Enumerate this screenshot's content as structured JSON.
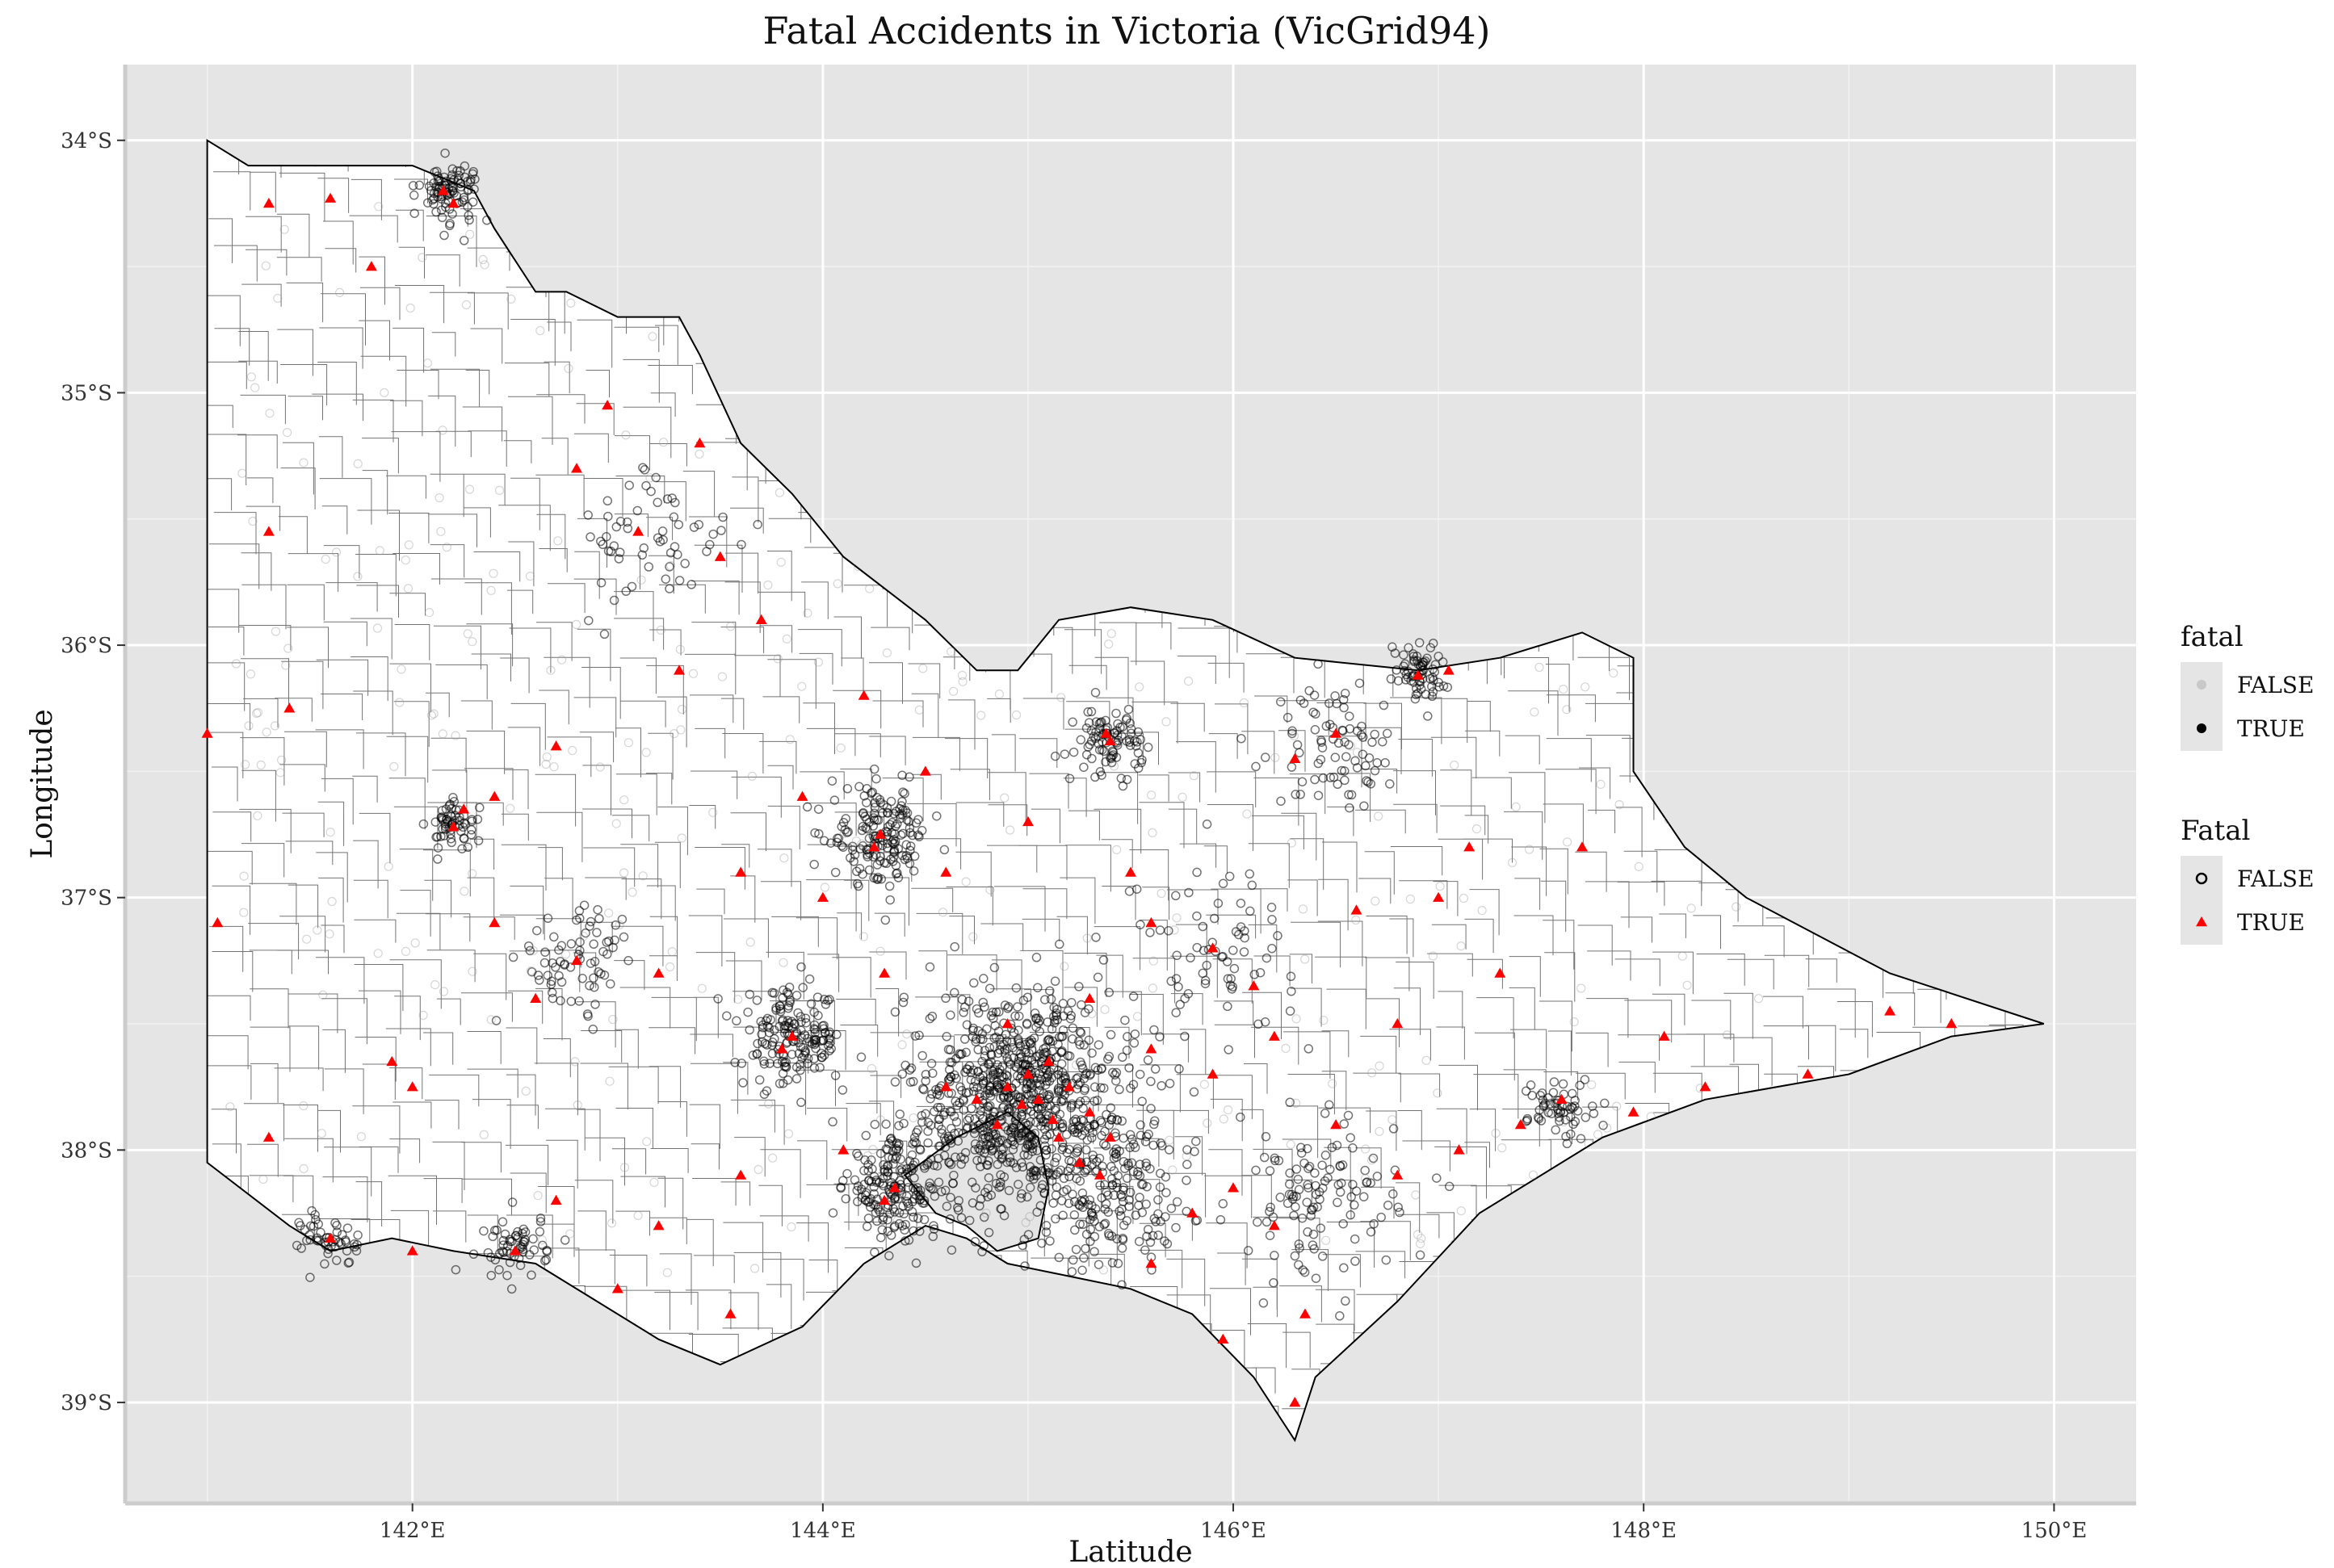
{
  "chart_data": {
    "type": "scatter",
    "title": "Fatal Accidents in Victoria (VicGrid94)",
    "xlabel": "Latitude",
    "ylabel": "Longitude",
    "xlim": [
      140.6,
      150.4
    ],
    "ylim": [
      -39.4,
      -33.7
    ],
    "x_ticks": [
      142,
      144,
      146,
      148,
      150
    ],
    "x_tick_labels": [
      "142°E",
      "144°E",
      "146°E",
      "148°E",
      "150°E"
    ],
    "y_ticks": [
      -34,
      -35,
      -36,
      -37,
      -38,
      -39
    ],
    "y_tick_labels": [
      "34°S",
      "35°S",
      "36°S",
      "37°S",
      "38°S",
      "39°S"
    ],
    "grid": true,
    "legend_placement": "right",
    "legends": [
      {
        "title": "fatal",
        "entries": [
          {
            "label": "FALSE",
            "marker": "circle-filled",
            "color": "#c8c8c8"
          },
          {
            "label": "TRUE",
            "marker": "circle-filled",
            "color": "#000000"
          }
        ]
      },
      {
        "title": "Fatal",
        "entries": [
          {
            "label": "FALSE",
            "marker": "circle-open",
            "color": "#000000"
          },
          {
            "label": "TRUE",
            "marker": "triangle",
            "color": "#ff0000"
          }
        ]
      }
    ],
    "boundary": [
      [
        141.0,
        -34.0
      ],
      [
        141.2,
        -34.1
      ],
      [
        141.6,
        -34.1
      ],
      [
        142.0,
        -34.1
      ],
      [
        142.3,
        -34.2
      ],
      [
        142.4,
        -34.35
      ],
      [
        142.6,
        -34.6
      ],
      [
        142.75,
        -34.6
      ],
      [
        143.0,
        -34.7
      ],
      [
        143.3,
        -34.7
      ],
      [
        143.4,
        -34.85
      ],
      [
        143.6,
        -35.2
      ],
      [
        143.85,
        -35.4
      ],
      [
        144.1,
        -35.65
      ],
      [
        144.5,
        -35.9
      ],
      [
        144.75,
        -36.1
      ],
      [
        144.95,
        -36.1
      ],
      [
        145.15,
        -35.9
      ],
      [
        145.5,
        -35.85
      ],
      [
        145.9,
        -35.9
      ],
      [
        146.3,
        -36.05
      ],
      [
        146.9,
        -36.1
      ],
      [
        147.3,
        -36.05
      ],
      [
        147.7,
        -35.95
      ],
      [
        147.95,
        -36.05
      ],
      [
        147.95,
        -36.5
      ],
      [
        148.2,
        -36.8
      ],
      [
        148.5,
        -37.0
      ],
      [
        149.2,
        -37.3
      ],
      [
        149.95,
        -37.5
      ],
      [
        149.5,
        -37.55
      ],
      [
        149.0,
        -37.7
      ],
      [
        148.3,
        -37.8
      ],
      [
        147.8,
        -37.95
      ],
      [
        147.2,
        -38.25
      ],
      [
        146.8,
        -38.6
      ],
      [
        146.4,
        -38.9
      ],
      [
        146.3,
        -39.15
      ],
      [
        146.1,
        -38.9
      ],
      [
        145.8,
        -38.65
      ],
      [
        145.5,
        -38.55
      ],
      [
        145.2,
        -38.5
      ],
      [
        144.9,
        -38.45
      ],
      [
        144.7,
        -38.35
      ],
      [
        144.5,
        -38.3
      ],
      [
        144.2,
        -38.45
      ],
      [
        143.9,
        -38.7
      ],
      [
        143.5,
        -38.85
      ],
      [
        143.2,
        -38.75
      ],
      [
        142.9,
        -38.6
      ],
      [
        142.6,
        -38.45
      ],
      [
        142.2,
        -38.4
      ],
      [
        141.9,
        -38.35
      ],
      [
        141.6,
        -38.4
      ],
      [
        141.4,
        -38.3
      ],
      [
        141.0,
        -38.05
      ],
      [
        141.0,
        -34.0
      ]
    ],
    "bay_boundary": [
      [
        144.4,
        -38.1
      ],
      [
        144.65,
        -37.95
      ],
      [
        144.9,
        -37.85
      ],
      [
        145.05,
        -37.95
      ],
      [
        145.1,
        -38.15
      ],
      [
        145.05,
        -38.35
      ],
      [
        144.85,
        -38.4
      ],
      [
        144.7,
        -38.3
      ],
      [
        144.55,
        -38.25
      ],
      [
        144.4,
        -38.1
      ]
    ],
    "fatal_true": [
      [
        144.97,
        -37.82
      ],
      [
        145.05,
        -37.8
      ],
      [
        145.12,
        -37.88
      ],
      [
        144.9,
        -37.75
      ],
      [
        145.0,
        -37.7
      ],
      [
        145.2,
        -37.75
      ],
      [
        144.85,
        -37.9
      ],
      [
        145.15,
        -37.95
      ],
      [
        145.3,
        -37.85
      ],
      [
        145.1,
        -37.65
      ],
      [
        144.75,
        -37.8
      ],
      [
        145.25,
        -38.05
      ],
      [
        145.4,
        -37.95
      ],
      [
        144.6,
        -37.75
      ],
      [
        145.35,
        -38.1
      ],
      [
        144.35,
        -38.15
      ],
      [
        144.3,
        -38.2
      ],
      [
        143.85,
        -37.55
      ],
      [
        143.8,
        -37.6
      ],
      [
        144.28,
        -36.75
      ],
      [
        144.25,
        -36.8
      ],
      [
        142.2,
        -36.72
      ],
      [
        142.25,
        -36.65
      ],
      [
        145.4,
        -36.38
      ],
      [
        145.38,
        -36.35
      ],
      [
        146.5,
        -36.35
      ],
      [
        146.3,
        -36.45
      ],
      [
        146.9,
        -36.12
      ],
      [
        147.05,
        -36.1
      ],
      [
        142.15,
        -34.2
      ],
      [
        142.2,
        -34.25
      ],
      [
        141.6,
        -34.23
      ],
      [
        141.3,
        -34.25
      ],
      [
        141.8,
        -34.5
      ],
      [
        141.3,
        -35.55
      ],
      [
        141.4,
        -36.25
      ],
      [
        141.0,
        -36.35
      ],
      [
        141.05,
        -37.1
      ],
      [
        141.3,
        -37.95
      ],
      [
        141.6,
        -38.35
      ],
      [
        142.0,
        -38.4
      ],
      [
        142.5,
        -38.4
      ],
      [
        143.0,
        -38.55
      ],
      [
        143.55,
        -38.65
      ],
      [
        143.2,
        -37.3
      ],
      [
        142.8,
        -37.25
      ],
      [
        142.4,
        -37.1
      ],
      [
        141.9,
        -37.65
      ],
      [
        142.0,
        -37.75
      ],
      [
        142.6,
        -37.4
      ],
      [
        143.6,
        -36.9
      ],
      [
        143.9,
        -36.6
      ],
      [
        144.5,
        -36.5
      ],
      [
        144.6,
        -36.9
      ],
      [
        145.0,
        -36.7
      ],
      [
        145.5,
        -36.9
      ],
      [
        145.6,
        -37.1
      ],
      [
        145.9,
        -37.2
      ],
      [
        146.1,
        -37.35
      ],
      [
        146.2,
        -37.55
      ],
      [
        146.5,
        -37.9
      ],
      [
        146.8,
        -38.1
      ],
      [
        147.1,
        -38.0
      ],
      [
        147.4,
        -37.9
      ],
      [
        147.6,
        -37.8
      ],
      [
        147.95,
        -37.85
      ],
      [
        148.3,
        -37.75
      ],
      [
        148.8,
        -37.7
      ],
      [
        149.2,
        -37.45
      ],
      [
        149.5,
        -37.5
      ],
      [
        146.6,
        -37.05
      ],
      [
        147.0,
        -37.0
      ],
      [
        147.15,
        -36.8
      ],
      [
        146.35,
        -38.65
      ],
      [
        146.3,
        -39.0
      ],
      [
        145.95,
        -38.75
      ],
      [
        145.6,
        -38.45
      ],
      [
        145.8,
        -38.25
      ],
      [
        146.0,
        -38.15
      ],
      [
        146.2,
        -38.3
      ],
      [
        142.8,
        -35.3
      ],
      [
        143.1,
        -35.55
      ],
      [
        143.5,
        -35.65
      ],
      [
        143.4,
        -35.2
      ],
      [
        142.95,
        -35.05
      ],
      [
        143.7,
        -35.9
      ],
      [
        144.2,
        -36.2
      ],
      [
        143.3,
        -36.1
      ],
      [
        142.7,
        -36.4
      ],
      [
        142.4,
        -36.6
      ],
      [
        144.0,
        -37.0
      ],
      [
        144.3,
        -37.3
      ],
      [
        144.9,
        -37.5
      ],
      [
        145.3,
        -37.4
      ],
      [
        145.6,
        -37.6
      ],
      [
        145.9,
        -37.7
      ],
      [
        144.1,
        -38.0
      ],
      [
        143.6,
        -38.1
      ],
      [
        143.2,
        -38.3
      ],
      [
        142.7,
        -38.2
      ],
      [
        146.8,
        -37.5
      ],
      [
        147.3,
        -37.3
      ],
      [
        148.1,
        -37.55
      ],
      [
        147.7,
        -36.8
      ]
    ],
    "fatal_false_clusters": [
      {
        "lon": 144.96,
        "lat": -37.81,
        "n": 900,
        "spread": 0.28
      },
      {
        "lon": 144.35,
        "lat": -38.15,
        "n": 180,
        "spread": 0.12
      },
      {
        "lon": 143.85,
        "lat": -37.56,
        "n": 170,
        "spread": 0.12
      },
      {
        "lon": 144.28,
        "lat": -36.76,
        "n": 170,
        "spread": 0.12
      },
      {
        "lon": 145.4,
        "lat": -36.38,
        "n": 90,
        "spread": 0.08
      },
      {
        "lon": 142.18,
        "lat": -34.2,
        "n": 90,
        "spread": 0.07
      },
      {
        "lon": 146.9,
        "lat": -36.1,
        "n": 70,
        "spread": 0.07
      },
      {
        "lon": 147.6,
        "lat": -37.83,
        "n": 60,
        "spread": 0.08
      },
      {
        "lon": 142.2,
        "lat": -36.72,
        "n": 60,
        "spread": 0.06
      },
      {
        "lon": 141.6,
        "lat": -38.35,
        "n": 50,
        "spread": 0.07
      },
      {
        "lon": 142.5,
        "lat": -38.38,
        "n": 60,
        "spread": 0.08
      },
      {
        "lon": 145.45,
        "lat": -38.2,
        "n": 160,
        "spread": 0.18
      },
      {
        "lon": 146.4,
        "lat": -38.2,
        "n": 120,
        "spread": 0.2
      },
      {
        "lon": 146.5,
        "lat": -36.4,
        "n": 80,
        "spread": 0.15
      },
      {
        "lon": 143.2,
        "lat": -35.6,
        "n": 60,
        "spread": 0.2
      },
      {
        "lon": 142.8,
        "lat": -37.25,
        "n": 70,
        "spread": 0.15
      },
      {
        "lon": 145.9,
        "lat": -37.2,
        "n": 70,
        "spread": 0.2
      }
    ]
  }
}
